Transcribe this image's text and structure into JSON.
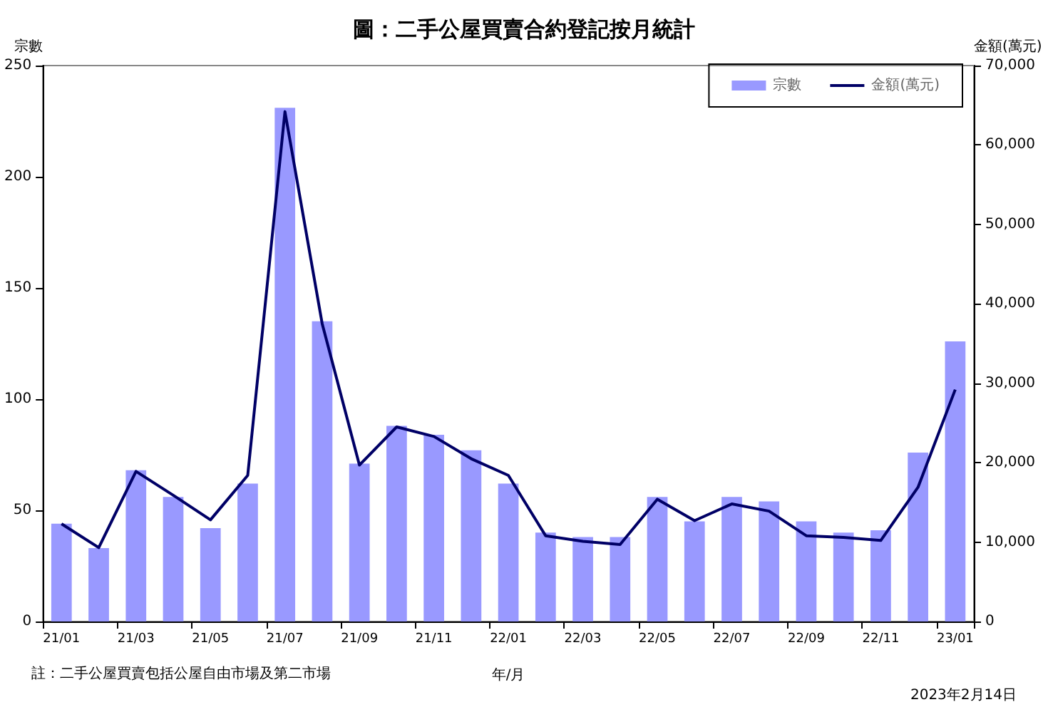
{
  "chart_data": {
    "type": "bar",
    "title": "圖：二手公屋買賣合約登記按月統計",
    "xlabel": "年/月",
    "ylabel": "宗數",
    "y2label": "金額(萬元)",
    "categories": [
      "21/01",
      null,
      "21/03",
      null,
      "21/05",
      null,
      "21/07",
      null,
      "21/09",
      null,
      "21/11",
      null,
      "22/01",
      null,
      "22/03",
      null,
      "22/05",
      null,
      "22/07",
      null,
      "22/09",
      null,
      "22/11",
      null,
      "23/01"
    ],
    "series": [
      {
        "name": "宗數",
        "color": "#9999ff",
        "values": [
          44,
          33,
          68,
          56,
          42,
          62,
          231,
          135,
          71,
          88,
          84,
          77,
          62,
          40,
          38,
          38,
          56,
          45,
          56,
          54,
          45,
          40,
          41,
          76,
          126
        ]
      },
      {
        "name": "金額(萬元)",
        "type": "line",
        "axis": "y2",
        "color": "#000066",
        "values": [
          12300,
          9300,
          18900,
          15900,
          12800,
          18400,
          64200,
          37500,
          19700,
          24500,
          23300,
          20500,
          18400,
          10800,
          10100,
          9700,
          15400,
          12700,
          14800,
          13900,
          10800,
          10600,
          10200,
          16900,
          29200
        ]
      }
    ],
    "ylim": [
      0,
      250
    ],
    "yticks": [
      0,
      50,
      100,
      150,
      200,
      250
    ],
    "y2lim": [
      0,
      70000
    ],
    "y2ticks": [
      0,
      {
        "value": 10000,
        "label": "10,000"
      },
      {
        "value": 20000,
        "label": "20,000"
      },
      {
        "value": 30000,
        "label": "30,000"
      },
      {
        "value": 40000,
        "label": "40,000"
      },
      {
        "value": 50000,
        "label": "50,000"
      },
      {
        "value": 60000,
        "label": "60,000"
      },
      {
        "value": 70000,
        "label": "70,000"
      }
    ],
    "grid": false,
    "legend": "top right",
    "marker": "none",
    "annotations": [
      "註：二手公屋買賣包括公屋自由市場及第二市場",
      "2023年2月14日"
    ]
  }
}
